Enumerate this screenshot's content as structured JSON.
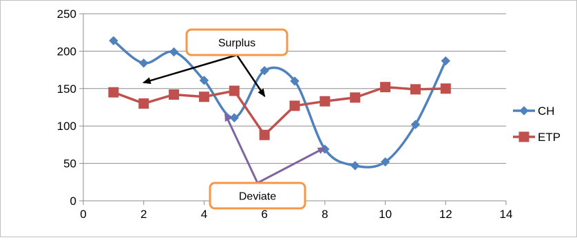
{
  "chart_data": {
    "type": "line",
    "title": "",
    "xlabel": "",
    "ylabel": "",
    "xlim": [
      0,
      14
    ],
    "ylim": [
      0,
      250
    ],
    "x_ticks": [
      "0",
      "2",
      "4",
      "6",
      "8",
      "10",
      "12",
      "14"
    ],
    "y_ticks": [
      "0",
      "50",
      "100",
      "150",
      "200",
      "250"
    ],
    "grid": "horizontal",
    "legend_position": "right",
    "series": [
      {
        "name": "CH",
        "color": "#4f81bd",
        "marker": "diamond",
        "smooth": true,
        "x": [
          1,
          2,
          3,
          4,
          5,
          6,
          7,
          8,
          9,
          10,
          11,
          12
        ],
        "values": [
          214,
          184,
          199,
          161,
          111,
          174,
          160,
          69,
          47,
          52,
          102,
          187
        ]
      },
      {
        "name": "ETP",
        "color": "#c0504d",
        "marker": "square",
        "smooth": false,
        "x": [
          1,
          2,
          3,
          4,
          5,
          6,
          7,
          8,
          9,
          10,
          11,
          12
        ],
        "values": [
          145,
          130,
          142,
          139,
          147,
          88,
          127,
          133,
          138,
          152,
          149,
          150
        ]
      }
    ],
    "annotations": [
      {
        "label": "Surplus",
        "box_border_color": "#f79646",
        "arrow_color": "#000000",
        "arrows_point_to": [
          [
            2,
            158
          ],
          [
            6,
            140
          ]
        ]
      },
      {
        "label": "Deviate",
        "box_border_color": "#f79646",
        "arrow_color": "#8064a2",
        "arrows_point_to": [
          [
            4.7,
            116
          ],
          [
            8,
            71
          ]
        ]
      }
    ]
  }
}
